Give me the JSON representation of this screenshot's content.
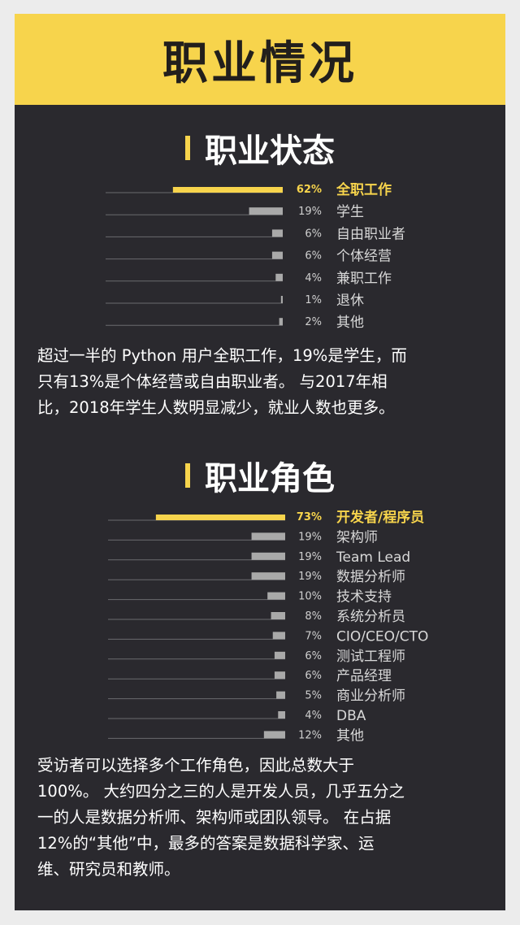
{
  "banner": {
    "title": "职业情况"
  },
  "sections": [
    {
      "title": "职业状态"
    },
    {
      "title": "职业角色"
    }
  ],
  "paragraphs": [
    {
      "lines": [
        "超过一半的 Python 用户全职工作，19%是学生，而",
        "只有13%是个体经营或自由职业者。 与2017年相",
        "比，2018年学生人数明显减少，就业人数也更多。"
      ]
    },
    {
      "lines": [
        "受访者可以选择多个工作角色，因此总数大于",
        "100%。 大约四分之三的人是开发人员，几乎五分之",
        "一的人是数据分析师、架构师或团队领导。 在占据",
        "12%的“其他”中，最多的答案是数据科学家、运",
        "维、研究员和教师。"
      ]
    }
  ],
  "colors": {
    "accent": "#f7d44c",
    "bar": "#a9a9a9",
    "baseline": "#6a6a6e",
    "text": "#ffffff",
    "background": "#2a292e"
  },
  "chart_data": [
    {
      "type": "bar",
      "orientation": "horizontal",
      "title": "职业状态",
      "categories": [
        "全职工作",
        "学生",
        "自由职业者",
        "个体经营",
        "兼职工作",
        "退休",
        "其他"
      ],
      "values": [
        62,
        19,
        6,
        6,
        4,
        1,
        2
      ],
      "value_labels": [
        "62%",
        "19%",
        "6%",
        "6%",
        "4%",
        "1%",
        "2%"
      ],
      "highlight_index": 0,
      "unit": "%"
    },
    {
      "type": "bar",
      "orientation": "horizontal",
      "title": "职业角色",
      "categories": [
        "开发者/程序员",
        "架构师",
        "Team Lead",
        "数据分析师",
        "技术支持",
        "系统分析员",
        "CIO/CEO/CTO",
        "测试工程师",
        "产品经理",
        "商业分析师",
        "DBA",
        "其他"
      ],
      "values": [
        73,
        19,
        19,
        19,
        10,
        8,
        7,
        6,
        6,
        5,
        4,
        12
      ],
      "value_labels": [
        "73%",
        "19%",
        "19%",
        "19%",
        "10%",
        "8%",
        "7%",
        "6%",
        "6%",
        "5%",
        "4%",
        "12%"
      ],
      "highlight_index": 0,
      "unit": "%"
    }
  ]
}
